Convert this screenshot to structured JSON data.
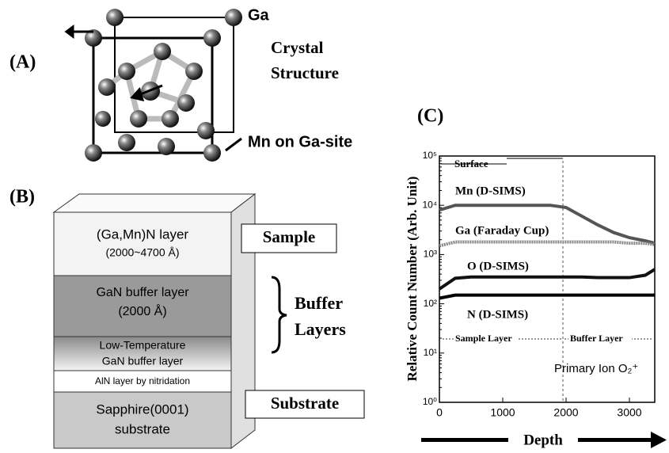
{
  "panel_a": {
    "label": "(A)",
    "atom_label": "Ga",
    "caption": [
      "Crystal",
      "Structure"
    ],
    "dopant_label": "Mn on Ga-site"
  },
  "panel_b": {
    "label": "(B)",
    "layers": [
      [
        "(Ga,Mn)N layer",
        "(2000~4700 Å)"
      ],
      [
        "GaN buffer layer",
        "(2000 Å)"
      ],
      [
        "Low-Temperature",
        "GaN buffer layer"
      ],
      [
        "AlN layer by nitridation"
      ],
      [
        "Sapphire(0001)",
        "substrate"
      ]
    ],
    "sample_label": "Sample",
    "buffer_label": [
      "Buffer",
      "Layers"
    ],
    "substrate_label": "Substrate"
  },
  "chart_data": {
    "type": "line",
    "panel_label": "(C)",
    "y_label": "Relative Count Number  (Arb. Unit)",
    "x_label": "Depth",
    "annotations": {
      "surface": "Surface",
      "sample_layer": "Sample Layer",
      "buffer_layer": "Buffer Layer",
      "primary_ion": "Primary Ion O₂⁺"
    },
    "x": [
      0,
      250,
      500,
      750,
      1000,
      1250,
      1500,
      1750,
      2000,
      2250,
      2500,
      2750,
      3000,
      3250,
      3400
    ],
    "series": [
      {
        "name": "Mn (D-SIMS)",
        "color": "#555555",
        "values": [
          8000,
          10000,
          10000,
          10000,
          10000,
          10000,
          10000,
          10000,
          9000,
          6000,
          4000,
          2800,
          2200,
          1900,
          1700
        ]
      },
      {
        "name": "Ga (Faraday Cup)",
        "color": "#888888",
        "values": [
          1500,
          1800,
          1800,
          1800,
          1800,
          1800,
          1800,
          1800,
          1800,
          1800,
          1800,
          1800,
          1700,
          1700,
          1600
        ]
      },
      {
        "name": "O (D-SIMS)",
        "color": "#111111",
        "values": [
          200,
          330,
          350,
          350,
          350,
          350,
          350,
          350,
          350,
          350,
          340,
          340,
          340,
          380,
          500
        ]
      },
      {
        "name": "N (D-SIMS)",
        "color": "#000000",
        "values": [
          130,
          150,
          150,
          150,
          150,
          150,
          150,
          150,
          150,
          150,
          150,
          150,
          150,
          150,
          150
        ]
      }
    ],
    "xlim": [
      0,
      3400
    ],
    "xticks": [
      0,
      1000,
      2000,
      3000
    ],
    "ylim": [
      1,
      100000
    ],
    "log_y": true,
    "yticks": [
      {
        "value": 1,
        "label": "10⁰"
      },
      {
        "value": 10,
        "label": "10¹"
      },
      {
        "value": 100,
        "label": "10²"
      },
      {
        "value": 1000,
        "label": "10³"
      },
      {
        "value": 10000,
        "label": "10⁴"
      },
      {
        "value": 100000,
        "label": "10⁵"
      }
    ]
  }
}
